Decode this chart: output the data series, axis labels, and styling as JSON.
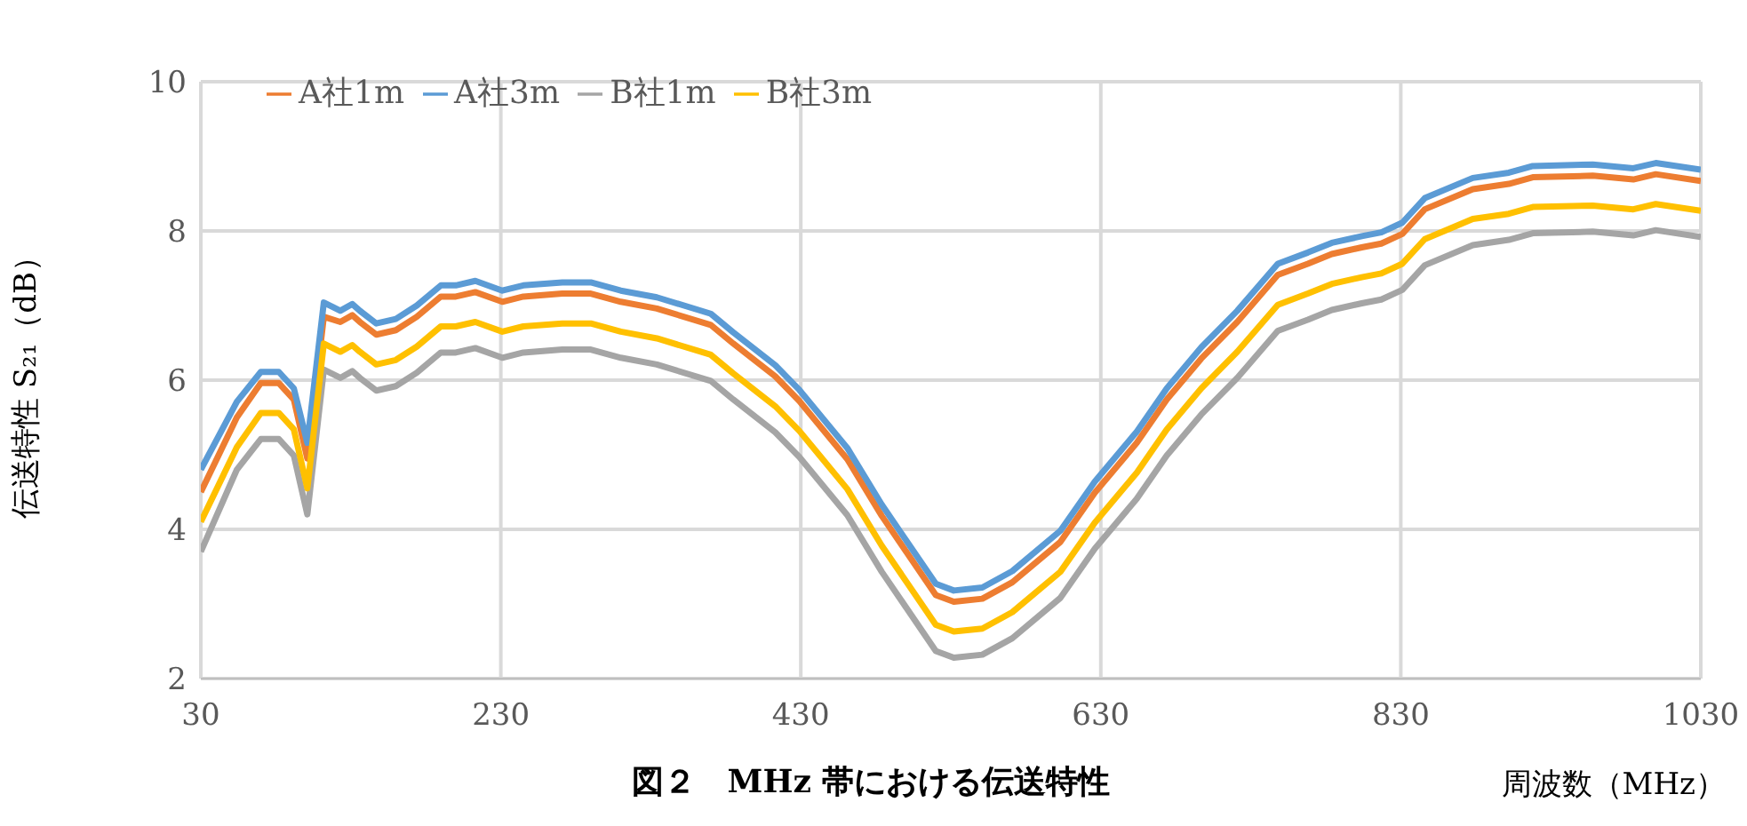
{
  "chart_data": {
    "type": "line",
    "title": "図２　MHz 帯における伝送特性",
    "xlabel": "周波数（MHz）",
    "ylabel": "伝送特性 S₂₁（dB）",
    "x": [
      30,
      54,
      70,
      82,
      92,
      101,
      112,
      123,
      131,
      136,
      147,
      160,
      174,
      190,
      200,
      213,
      231,
      245,
      271,
      290,
      310,
      334,
      370,
      385,
      413,
      429,
      461,
      484,
      520,
      532,
      551,
      571,
      603,
      626,
      654,
      674,
      697,
      721,
      748,
      768,
      784,
      804,
      817,
      831,
      846,
      878,
      902,
      918,
      958,
      985,
      1000,
      1030
    ],
    "series": [
      {
        "name": "A社1m",
        "color": "#ed7d31",
        "values": [
          4.5,
          5.5,
          5.96,
          5.96,
          5.74,
          4.95,
          6.85,
          6.78,
          6.87,
          6.78,
          6.61,
          6.67,
          6.85,
          7.12,
          7.12,
          7.18,
          7.05,
          7.12,
          7.16,
          7.16,
          7.05,
          6.96,
          6.74,
          6.49,
          6.05,
          5.72,
          4.94,
          4.18,
          3.12,
          3.03,
          3.07,
          3.29,
          3.83,
          4.49,
          5.16,
          5.74,
          6.29,
          6.78,
          7.41,
          7.56,
          7.69,
          7.78,
          7.83,
          7.96,
          8.29,
          8.56,
          8.63,
          8.72,
          8.74,
          8.69,
          8.76,
          8.67
        ]
      },
      {
        "name": "A社3m",
        "color": "#5b9bd5",
        "values": [
          4.8,
          5.71,
          6.11,
          6.11,
          5.89,
          5.16,
          7.04,
          6.93,
          7.02,
          6.93,
          6.76,
          6.82,
          7.0,
          7.27,
          7.27,
          7.33,
          7.2,
          7.27,
          7.31,
          7.31,
          7.2,
          7.11,
          6.89,
          6.64,
          6.2,
          5.87,
          5.09,
          4.33,
          3.27,
          3.18,
          3.22,
          3.44,
          3.98,
          4.64,
          5.31,
          5.89,
          6.44,
          6.93,
          7.56,
          7.71,
          7.84,
          7.93,
          7.98,
          8.11,
          8.44,
          8.71,
          8.78,
          8.87,
          8.89,
          8.84,
          8.91,
          8.82
        ]
      },
      {
        "name": "B社1m",
        "color": "#a5a5a5",
        "values": [
          3.7,
          4.8,
          5.21,
          5.21,
          4.99,
          4.2,
          6.14,
          6.03,
          6.12,
          6.03,
          5.86,
          5.92,
          6.1,
          6.37,
          6.37,
          6.43,
          6.3,
          6.37,
          6.41,
          6.41,
          6.3,
          6.21,
          5.99,
          5.74,
          5.3,
          4.97,
          4.19,
          3.43,
          2.37,
          2.28,
          2.32,
          2.54,
          3.08,
          3.74,
          4.41,
          4.99,
          5.54,
          6.03,
          6.66,
          6.81,
          6.94,
          7.03,
          7.08,
          7.21,
          7.54,
          7.81,
          7.88,
          7.97,
          7.99,
          7.94,
          8.01,
          7.92
        ]
      },
      {
        "name": "B社3m",
        "color": "#ffc000",
        "values": [
          4.1,
          5.1,
          5.56,
          5.56,
          5.34,
          4.55,
          6.49,
          6.38,
          6.47,
          6.38,
          6.21,
          6.27,
          6.45,
          6.72,
          6.72,
          6.78,
          6.65,
          6.72,
          6.76,
          6.76,
          6.65,
          6.56,
          6.34,
          6.09,
          5.65,
          5.32,
          4.54,
          3.78,
          2.72,
          2.63,
          2.67,
          2.89,
          3.43,
          4.09,
          4.76,
          5.34,
          5.89,
          6.38,
          7.01,
          7.16,
          7.29,
          7.38,
          7.43,
          7.56,
          7.89,
          8.16,
          8.23,
          8.32,
          8.34,
          8.29,
          8.36,
          8.27
        ]
      }
    ],
    "xlim": [
      30,
      1030
    ],
    "xticks": [
      30,
      230,
      430,
      630,
      830,
      1030
    ],
    "ylim": [
      2,
      10
    ],
    "yticks": [
      2,
      4,
      6,
      8,
      10
    ],
    "grid": true,
    "legend": "top left",
    "marker": "none",
    "line_style": "solid"
  }
}
